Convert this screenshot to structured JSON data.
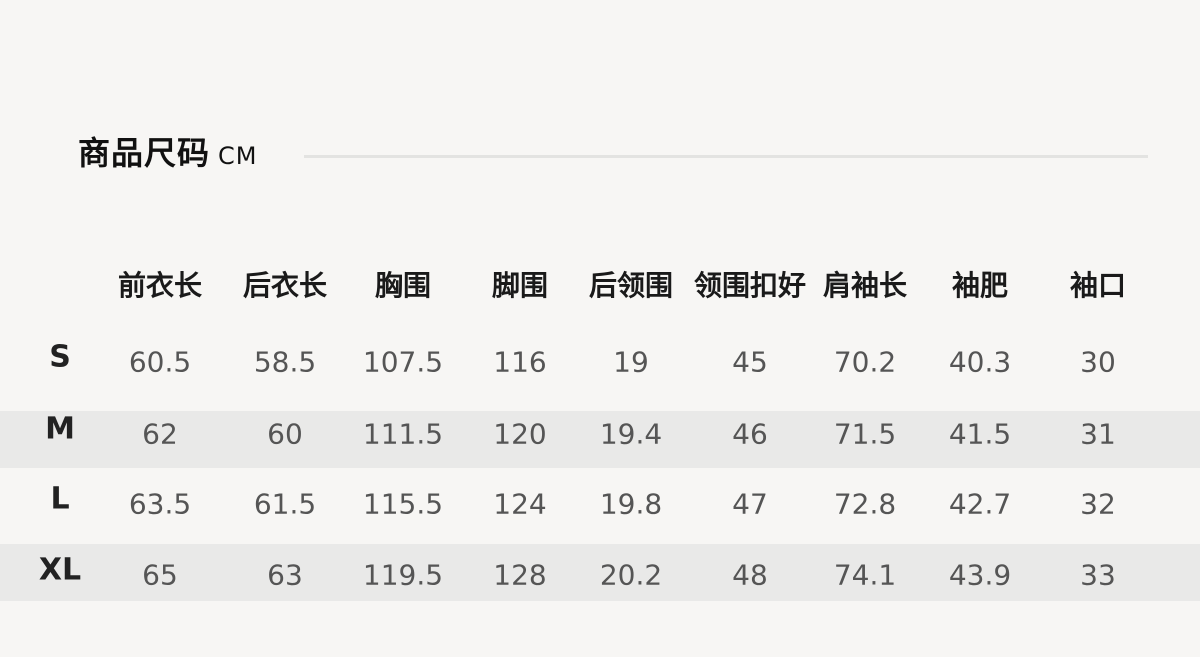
{
  "title": "商品尺码",
  "unit": "CM",
  "headers": [
    "前衣长",
    "后衣长",
    "胸围",
    "脚围",
    "后领围",
    "领围扣好",
    "肩袖长",
    "袖肥",
    "袖口"
  ],
  "rows": [
    {
      "size": "S",
      "values": [
        "60.5",
        "58.5",
        "107.5",
        "116",
        "19",
        "45",
        "70.2",
        "40.3",
        "30"
      ]
    },
    {
      "size": "M",
      "values": [
        "62",
        "60",
        "111.5",
        "120",
        "19.4",
        "46",
        "71.5",
        "41.5",
        "31"
      ]
    },
    {
      "size": "L",
      "values": [
        "63.5",
        "61.5",
        "115.5",
        "124",
        "19.8",
        "47",
        "72.8",
        "42.7",
        "32"
      ]
    },
    {
      "size": "XL",
      "values": [
        "65",
        "63",
        "119.5",
        "128",
        "20.2",
        "48",
        "74.1",
        "43.9",
        "33"
      ]
    }
  ]
}
